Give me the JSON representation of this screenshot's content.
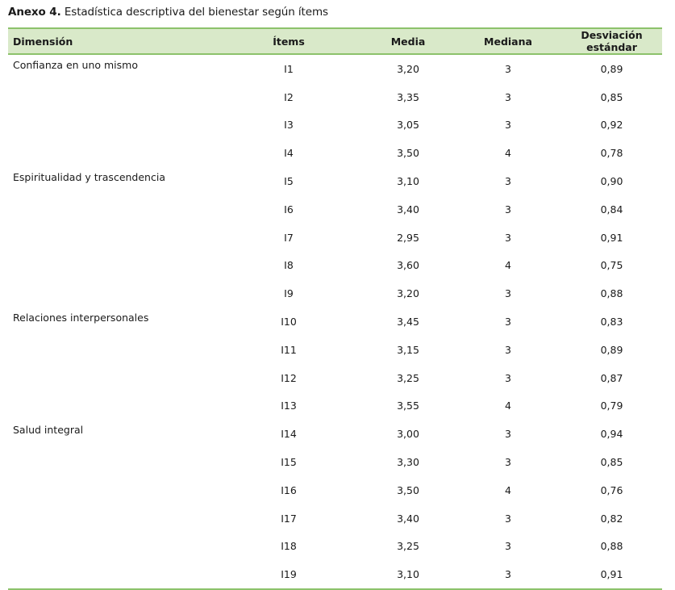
{
  "caption": {
    "label": "Anexo 4.",
    "text": "Estadística descriptiva del bienestar según ítems"
  },
  "table": {
    "headers": [
      "Dimensión",
      "Ítems",
      "Media",
      "Mediana",
      "Desviación estándar"
    ],
    "groups": [
      {
        "dimension": "Confianza en uno mismo",
        "rows": [
          [
            "I1",
            "3,20",
            "3",
            "0,89"
          ],
          [
            "I2",
            "3,35",
            "3",
            "0,85"
          ],
          [
            "I3",
            "3,05",
            "3",
            "0,92"
          ],
          [
            "I4",
            "3,50",
            "4",
            "0,78"
          ]
        ]
      },
      {
        "dimension": "Espiritualidad y trascendencia",
        "rows": [
          [
            "I5",
            "3,10",
            "3",
            "0,90"
          ],
          [
            "I6",
            "3,40",
            "3",
            "0,84"
          ],
          [
            "I7",
            "2,95",
            "3",
            "0,91"
          ],
          [
            "I8",
            "3,60",
            "4",
            "0,75"
          ],
          [
            "I9",
            "3,20",
            "3",
            "0,88"
          ]
        ]
      },
      {
        "dimension": "Relaciones interpersonales",
        "rows": [
          [
            "I10",
            "3,45",
            "3",
            "0,83"
          ],
          [
            "I11",
            "3,15",
            "3",
            "0,89"
          ],
          [
            "I12",
            "3,25",
            "3",
            "0,87"
          ],
          [
            "I13",
            "3,55",
            "4",
            "0,79"
          ]
        ]
      },
      {
        "dimension": "Salud integral",
        "rows": [
          [
            "I14",
            "3,00",
            "3",
            "0,94"
          ],
          [
            "I15",
            "3,30",
            "3",
            "0,85"
          ],
          [
            "I16",
            "3,50",
            "4",
            "0,76"
          ],
          [
            "I17",
            "3,40",
            "3",
            "0,82"
          ],
          [
            "I18",
            "3,25",
            "3",
            "0,88"
          ],
          [
            "I19",
            "3,10",
            "3",
            "0,91"
          ]
        ]
      }
    ]
  },
  "colors": {
    "header_background": "#d9e9c9",
    "rule": "#8cc26b"
  }
}
